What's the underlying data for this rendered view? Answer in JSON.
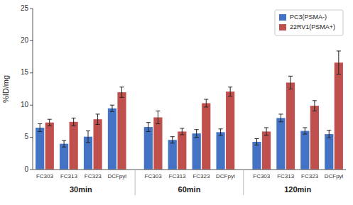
{
  "chart_data": {
    "type": "bar",
    "categories": [
      "FC303",
      "FC313",
      "FC323",
      "DCFpyl",
      "FC303",
      "FC313",
      "FC323",
      "DCFpyl",
      "FC303",
      "FC313",
      "FC323",
      "DCFpyl"
    ],
    "category_groups": [
      "30min",
      "60min",
      "120min"
    ],
    "series": [
      {
        "name": "PC3(PSMA-)",
        "color": "#4472C4",
        "values": [
          6.5,
          4.0,
          5.1,
          9.5,
          6.6,
          4.6,
          5.6,
          5.8,
          4.3,
          8.0,
          6.0,
          5.5
        ],
        "errors": [
          0.6,
          0.5,
          0.9,
          0.5,
          0.7,
          0.5,
          0.6,
          0.5,
          0.5,
          0.6,
          0.5,
          0.6
        ]
      },
      {
        "name": "22RV1(PSMA+)",
        "color": "#C0504D",
        "values": [
          7.3,
          7.4,
          7.8,
          12.0,
          8.1,
          5.9,
          10.3,
          12.1,
          5.9,
          13.5,
          9.9,
          16.6
        ],
        "errors": [
          0.5,
          0.6,
          0.8,
          0.8,
          1.0,
          0.5,
          0.6,
          0.7,
          0.6,
          1.0,
          0.8,
          1.8
        ]
      }
    ],
    "ylabel": "%ID/mg",
    "ylim": [
      0,
      25
    ],
    "yticks": [
      0,
      5,
      10,
      15,
      20,
      25
    ],
    "grid": false,
    "legend": "upper right"
  }
}
